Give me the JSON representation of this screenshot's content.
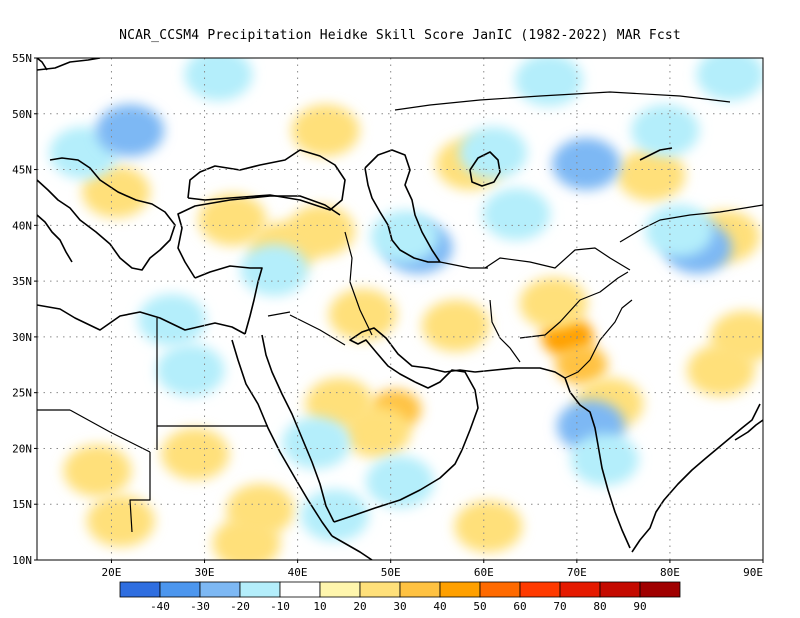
{
  "title": "NCAR_CCSM4  Precipitation Heidke Skill Score JanIC (1982-2022) MAR Fcst",
  "map": {
    "lon_range": [
      12,
      90
    ],
    "lat_range": [
      10,
      55
    ],
    "lat_ticks": [
      {
        "value": 55,
        "label": "55N"
      },
      {
        "value": 50,
        "label": "50N"
      },
      {
        "value": 45,
        "label": "45N"
      },
      {
        "value": 40,
        "label": "40N"
      },
      {
        "value": 35,
        "label": "35N"
      },
      {
        "value": 30,
        "label": "30N"
      },
      {
        "value": 25,
        "label": "25N"
      },
      {
        "value": 20,
        "label": "20N"
      },
      {
        "value": 15,
        "label": "15N"
      },
      {
        "value": 10,
        "label": "10N"
      }
    ],
    "lon_ticks": [
      {
        "value": 20,
        "label": "20E"
      },
      {
        "value": 30,
        "label": "30E"
      },
      {
        "value": 40,
        "label": "40E"
      },
      {
        "value": 50,
        "label": "50E"
      },
      {
        "value": 60,
        "label": "60E"
      },
      {
        "value": 70,
        "label": "70E"
      },
      {
        "value": 80,
        "label": "80E"
      },
      {
        "value": 90,
        "label": "90E"
      }
    ],
    "gridlines": "dotted"
  },
  "colorbar": {
    "colors": [
      "#2f6ee0",
      "#4c96ee",
      "#7db8f4",
      "#b4eefb",
      "#ffffff",
      "#fff6ad",
      "#ffe07a",
      "#ffc242",
      "#ffa000",
      "#ff6a00",
      "#ff3a00",
      "#e51a00",
      "#c40a00",
      "#a00000"
    ],
    "labels": [
      "-40",
      "-30",
      "-20",
      "-10",
      "10",
      "20",
      "30",
      "40",
      "50",
      "60",
      "70",
      "80",
      "90"
    ]
  },
  "skill_regions": [
    {
      "lon": 50.5,
      "lat": 23.5,
      "level": 30
    },
    {
      "lon": 48.5,
      "lat": 21.5,
      "level": 20
    },
    {
      "lon": 44.5,
      "lat": 24.0,
      "level": 20
    },
    {
      "lon": 69.0,
      "lat": 30.0,
      "level": 40
    },
    {
      "lon": 70.5,
      "lat": 27.5,
      "level": 30
    },
    {
      "lon": 67.5,
      "lat": 33.0,
      "level": 20
    },
    {
      "lon": 73.5,
      "lat": 24.0,
      "level": 20
    },
    {
      "lon": 85.5,
      "lat": 27.0,
      "level": 20
    },
    {
      "lon": 88.0,
      "lat": 30.0,
      "level": 20
    },
    {
      "lon": 57.0,
      "lat": 31.0,
      "level": 20
    },
    {
      "lon": 18.5,
      "lat": 18.0,
      "level": 20
    },
    {
      "lon": 21.0,
      "lat": 13.5,
      "level": 20
    },
    {
      "lon": 29.0,
      "lat": 19.5,
      "level": 20
    },
    {
      "lon": 34.5,
      "lat": 11.5,
      "level": 20
    },
    {
      "lon": 60.5,
      "lat": 13.0,
      "level": 20
    },
    {
      "lon": 33.0,
      "lat": 40.5,
      "level": 20
    },
    {
      "lon": 42.5,
      "lat": 39.5,
      "level": 20
    },
    {
      "lon": 20.5,
      "lat": 43.0,
      "level": 20
    },
    {
      "lon": 43.0,
      "lat": 48.5,
      "level": 20
    },
    {
      "lon": 58.5,
      "lat": 45.5,
      "level": 20
    },
    {
      "lon": 86.0,
      "lat": 39.0,
      "level": 20
    },
    {
      "lon": 78.0,
      "lat": 44.5,
      "level": 20
    },
    {
      "lon": 47.0,
      "lat": 32.0,
      "level": 20
    },
    {
      "lon": 36.0,
      "lat": 14.5,
      "level": 20
    },
    {
      "lon": 38.5,
      "lat": 38.0,
      "level": 20
    },
    {
      "lon": 17.0,
      "lat": 46.5,
      "level": -10
    },
    {
      "lon": 22.0,
      "lat": 48.5,
      "level": -20
    },
    {
      "lon": 53.0,
      "lat": 38.0,
      "level": -20
    },
    {
      "lon": 51.5,
      "lat": 39.0,
      "level": -10
    },
    {
      "lon": 83.0,
      "lat": 38.0,
      "level": -20
    },
    {
      "lon": 81.0,
      "lat": 39.5,
      "level": -10
    },
    {
      "lon": 86.5,
      "lat": 53.5,
      "level": -10
    },
    {
      "lon": 67.0,
      "lat": 53.0,
      "level": -10
    },
    {
      "lon": 79.5,
      "lat": 48.5,
      "level": -10
    },
    {
      "lon": 71.0,
      "lat": 45.5,
      "level": -20
    },
    {
      "lon": 26.5,
      "lat": 31.5,
      "level": -10
    },
    {
      "lon": 28.5,
      "lat": 27.0,
      "level": -10
    },
    {
      "lon": 71.5,
      "lat": 22.0,
      "level": -20
    },
    {
      "lon": 73.0,
      "lat": 19.0,
      "level": -10
    },
    {
      "lon": 51.0,
      "lat": 17.0,
      "level": -10
    },
    {
      "lon": 44.0,
      "lat": 14.0,
      "level": -10
    },
    {
      "lon": 42.0,
      "lat": 20.5,
      "level": -10
    },
    {
      "lon": 63.5,
      "lat": 41.0,
      "level": -10
    },
    {
      "lon": 31.5,
      "lat": 53.5,
      "level": -10
    },
    {
      "lon": 37.5,
      "lat": 36.0,
      "level": -10
    },
    {
      "lon": 61.0,
      "lat": 46.5,
      "level": -10
    }
  ]
}
